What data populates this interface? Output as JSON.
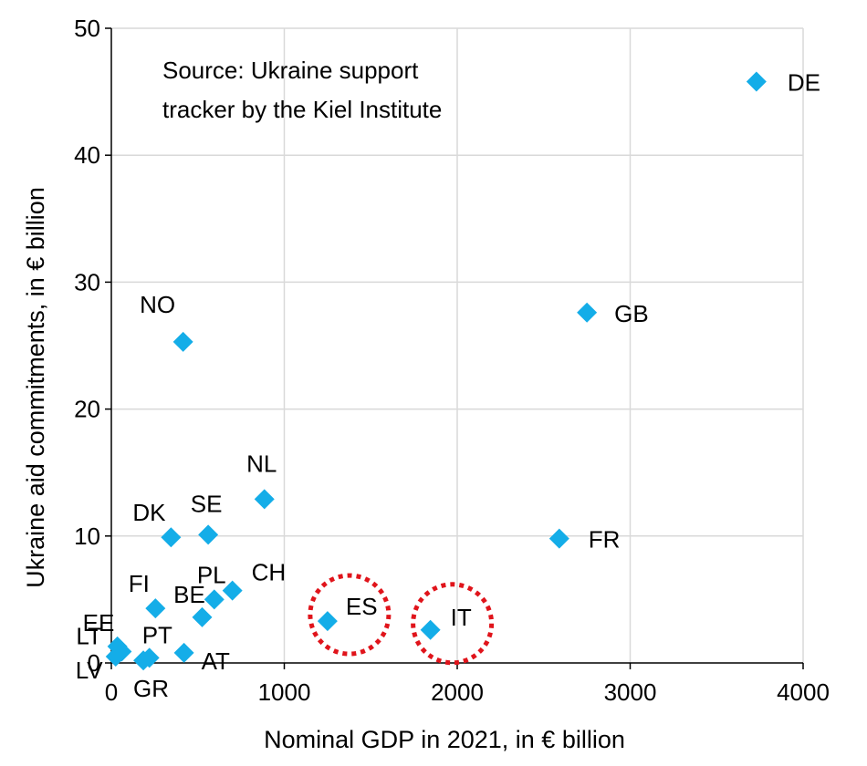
{
  "chart_data": {
    "type": "scatter",
    "xlabel": "Nominal GDP in 2021, in € billion",
    "ylabel": "Ukraine aid commitments, in € billion",
    "xlim": [
      0,
      4000
    ],
    "ylim": [
      0,
      50
    ],
    "xticks": [
      0,
      1000,
      2000,
      3000,
      4000
    ],
    "yticks": [
      0,
      10,
      20,
      30,
      40,
      50
    ],
    "grid": true,
    "marker": "diamond",
    "marker_color": "#14ade8",
    "highlight_color": "#e0141b",
    "annotation": {
      "line1": "Source: Ukraine support",
      "line2": "tracker by the Kiel Institute"
    },
    "points": [
      {
        "label": "DE",
        "x": 3730,
        "y": 45.8
      },
      {
        "label": "GB",
        "x": 2750,
        "y": 27.6
      },
      {
        "label": "FR",
        "x": 2590,
        "y": 9.8
      },
      {
        "label": "NO",
        "x": 415,
        "y": 25.3
      },
      {
        "label": "NL",
        "x": 885,
        "y": 12.9
      },
      {
        "label": "SE",
        "x": 560,
        "y": 10.1
      },
      {
        "label": "DK",
        "x": 345,
        "y": 9.9
      },
      {
        "label": "CH",
        "x": 700,
        "y": 5.7
      },
      {
        "label": "PL",
        "x": 595,
        "y": 5.0
      },
      {
        "label": "BE",
        "x": 525,
        "y": 3.6
      },
      {
        "label": "FI",
        "x": 255,
        "y": 4.3
      },
      {
        "label": "ES",
        "x": 1250,
        "y": 3.3,
        "highlight": true
      },
      {
        "label": "IT",
        "x": 1845,
        "y": 2.6,
        "highlight": true
      },
      {
        "label": "AT",
        "x": 420,
        "y": 0.8
      },
      {
        "label": "EE",
        "x": 35,
        "y": 1.3
      },
      {
        "label": "LT",
        "x": 60,
        "y": 0.9
      },
      {
        "label": "LV",
        "x": 25,
        "y": 0.5
      },
      {
        "label": "PT",
        "x": 220,
        "y": 0.4
      },
      {
        "label": "GR",
        "x": 185,
        "y": 0.2
      }
    ]
  }
}
